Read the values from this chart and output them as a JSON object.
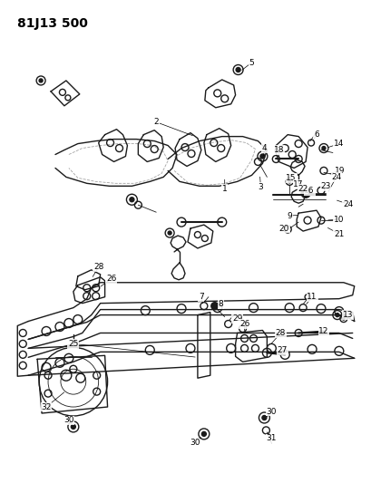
{
  "title": "81J13 500",
  "title_fontsize": 10,
  "title_fontweight": "bold",
  "bg_color": "#ffffff",
  "fig_width": 4.09,
  "fig_height": 5.33,
  "dpi": 100,
  "lw_main": 1.0,
  "lw_thin": 0.6,
  "color": "#1a1a1a",
  "label_fontsize": 6.5
}
